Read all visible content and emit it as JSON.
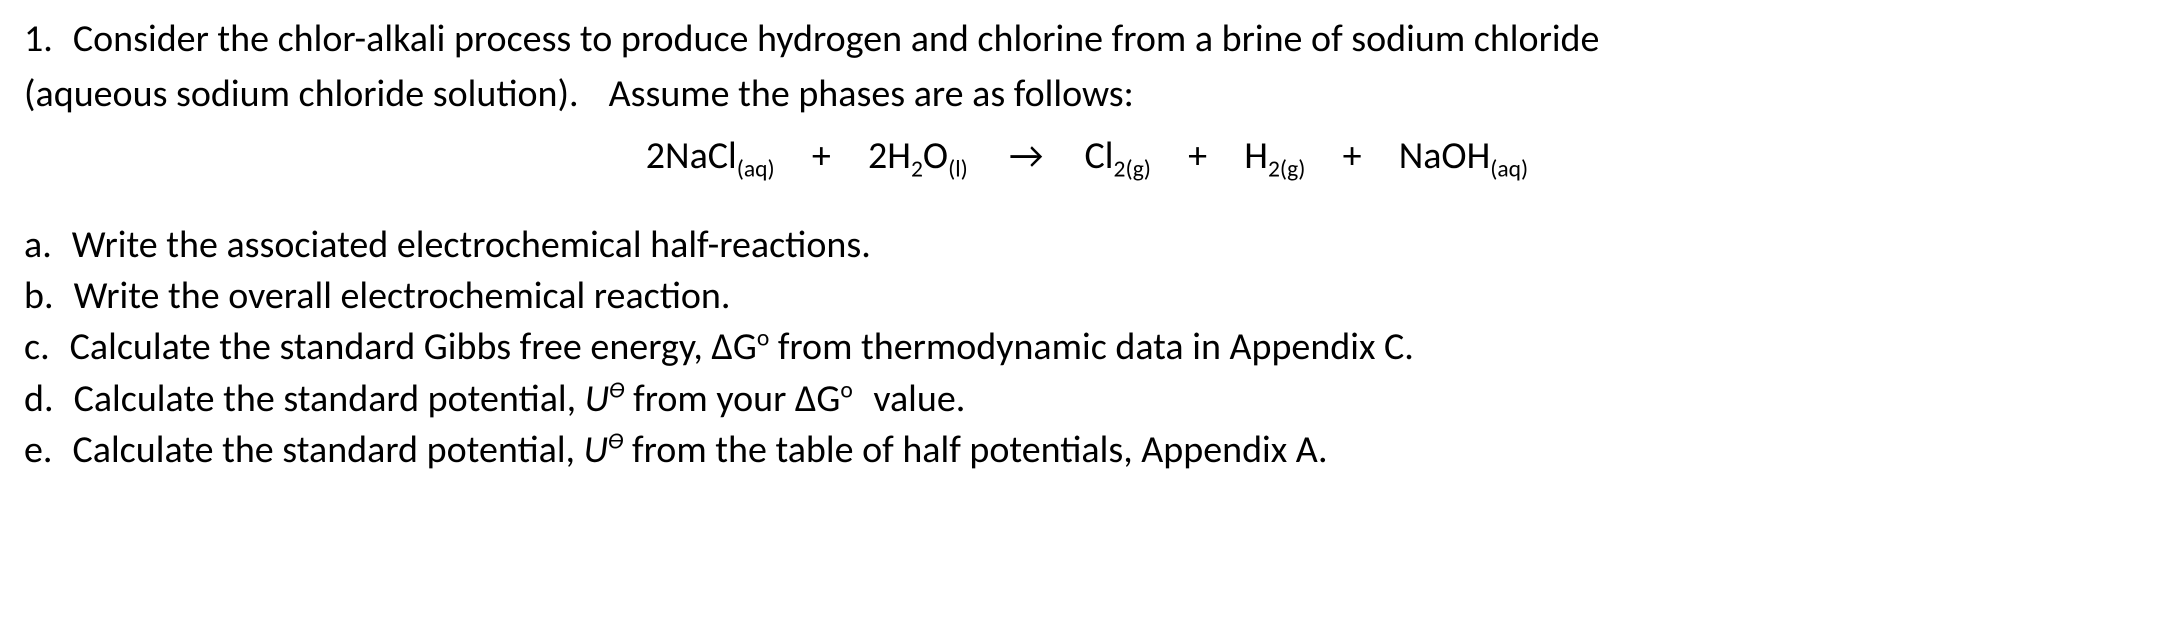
{
  "question": {
    "number": "1.",
    "intro_line1": "Consider the chlor-alkali process to produce hydrogen and chlorine from a brine of sodium chloride",
    "intro_line2_a": "(aqueous sodium chloride solution).",
    "intro_line2_b": "Assume the phases are as follows:"
  },
  "equation": {
    "r1": {
      "coef": "2",
      "formula": "NaCl",
      "phase": "(aq)"
    },
    "plus1": "+",
    "r2": {
      "coef": "2",
      "elA": "H",
      "subA": "2",
      "elB": "O",
      "phase": "(l)"
    },
    "arrow": "→",
    "p1": {
      "formula": "Cl",
      "sub": "2",
      "phase": "(g)"
    },
    "plus2": "+",
    "p2": {
      "formula": "H",
      "sub": "2",
      "phase": "(g)"
    },
    "plus3": "+",
    "p3": {
      "formula": "NaOH",
      "phase": "(aq)"
    }
  },
  "parts": {
    "a": {
      "label": "a.",
      "text": "Write the associated electrochemical half-reactions."
    },
    "b": {
      "label": "b.",
      "text": "Write the overall electrochemical reaction."
    },
    "c": {
      "label": "c.",
      "pre": "Calculate the standard Gibbs free energy, ",
      "sym_base": "ΔG",
      "sym_sup": "o",
      "post": " from thermodynamic data in Appendix C."
    },
    "d": {
      "label": "d.",
      "pre": "Calculate the standard potential, ",
      "sym_base": "U",
      "sym_sup": "ϴ",
      "mid": " from your ",
      "sym2_base": "ΔG",
      "sym2_sup": "o",
      "post": " value."
    },
    "e": {
      "label": "e.",
      "pre": "Calculate the standard potential, ",
      "sym_base": "U",
      "sym_sup": "ϴ",
      "post": " from the table of half potentials, Appendix A."
    }
  }
}
